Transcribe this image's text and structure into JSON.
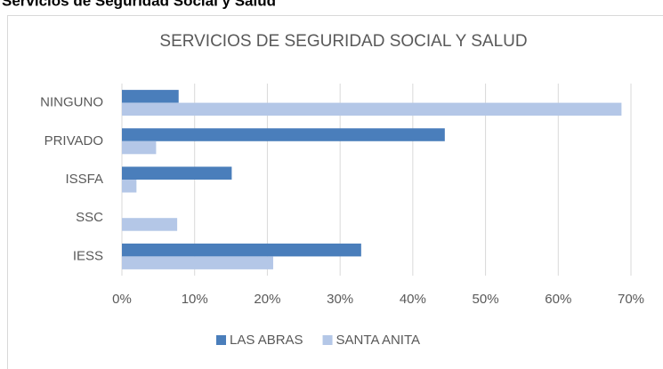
{
  "heading": "Servicios de Seguridad Social y Salud",
  "chart_data": {
    "type": "hbar",
    "title": "SERVICIOS DE SEGURIDAD SOCIAL Y SALUD",
    "categories": [
      "NINGUNO",
      "PRIVADO",
      "ISSFA",
      "SSC",
      "IESS"
    ],
    "series": [
      {
        "name": "LAS ABRAS",
        "color": "#4a7ebb",
        "values": [
          7.8,
          44.4,
          15.1,
          0,
          32.9
        ]
      },
      {
        "name": "SANTA ANITA",
        "color": "#b4c7e7",
        "values": [
          68.7,
          4.7,
          2.0,
          7.6,
          20.8
        ]
      }
    ],
    "xlim": [
      0,
      70
    ],
    "xticks": [
      {
        "value": 0,
        "label": "0%"
      },
      {
        "value": 10,
        "label": "10%"
      },
      {
        "value": 20,
        "label": "20%"
      },
      {
        "value": 30,
        "label": "30%"
      },
      {
        "value": 40,
        "label": "40%"
      },
      {
        "value": 50,
        "label": "50%"
      },
      {
        "value": 60,
        "label": "60%"
      },
      {
        "value": 70,
        "label": "70%"
      }
    ],
    "grid": true,
    "legend": "bottom"
  }
}
